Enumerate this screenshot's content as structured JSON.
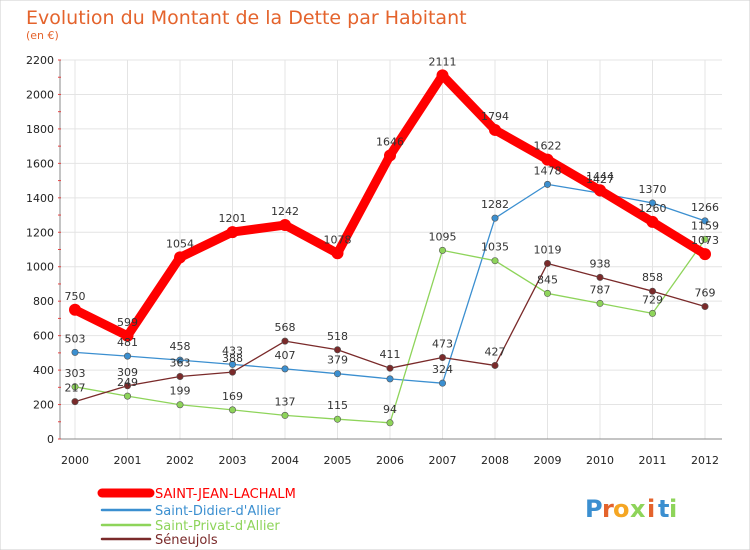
{
  "chart_data": {
    "type": "line",
    "title": "Evolution du Montant de la Dette par Habitant",
    "subtitle": "(en €)",
    "xlabel": "",
    "ylabel": "",
    "ylim": [
      0,
      2200
    ],
    "yticks": [
      0,
      200,
      400,
      600,
      800,
      1000,
      1200,
      1400,
      1600,
      1800,
      2000,
      2200
    ],
    "grid": true,
    "legend_placement": "bottom-left",
    "categories": [
      "2000",
      "2001",
      "2002",
      "2003",
      "2004",
      "2005",
      "2006",
      "2007",
      "2008",
      "2009",
      "2010",
      "2011",
      "2012"
    ],
    "series": [
      {
        "name": "SAINT-JEAN-LACHALM",
        "color": "#ff0000",
        "values": [
          750,
          599,
          1054,
          1201,
          1242,
          1078,
          1646,
          2111,
          1794,
          1622,
          1444,
          1260,
          1073
        ],
        "labels": [
          "750",
          "599",
          "1054",
          "1201",
          "1242",
          "1078",
          "1646",
          "2111",
          "1794",
          "1622",
          "1444",
          "1260",
          "1073"
        ]
      },
      {
        "name": "Saint-Didier-d'Allier",
        "color": "#3b8fd0",
        "values": [
          503,
          481,
          458,
          433,
          407,
          379,
          349,
          324,
          1282,
          1478,
          1427,
          1370,
          1266
        ],
        "labels": [
          "503",
          "481",
          "458",
          "433",
          "407",
          "379",
          "",
          "324",
          "1282",
          "1478",
          "1427",
          "1370",
          "1266"
        ]
      },
      {
        "name": "Saint-Privat-d'Allier",
        "color": "#8ed45a",
        "values": [
          303,
          249,
          199,
          169,
          137,
          115,
          94,
          1095,
          1035,
          845,
          787,
          729,
          1159
        ],
        "labels": [
          "303",
          "249",
          "199",
          "169",
          "137",
          "115",
          "94",
          "1095",
          "1035",
          "845",
          "787",
          "729",
          "1159"
        ]
      },
      {
        "name": "Séneujols",
        "color": "#7a2a2a",
        "values": [
          217,
          309,
          363,
          388,
          568,
          518,
          411,
          473,
          427,
          1019,
          938,
          858,
          769
        ],
        "labels": [
          "217",
          "309",
          "363",
          "388",
          "568",
          "518",
          "411",
          "473",
          "427",
          "1019",
          "938",
          "858",
          "769"
        ]
      }
    ]
  },
  "logo": {
    "letters": [
      "P",
      "r",
      "o",
      "x",
      "i",
      "t",
      "i"
    ],
    "colors": [
      "#3b8fd0",
      "#e4632c",
      "#f5a623",
      "#8ed45a",
      "#e4632c",
      "#3b8fd0",
      "#8ed45a"
    ]
  }
}
